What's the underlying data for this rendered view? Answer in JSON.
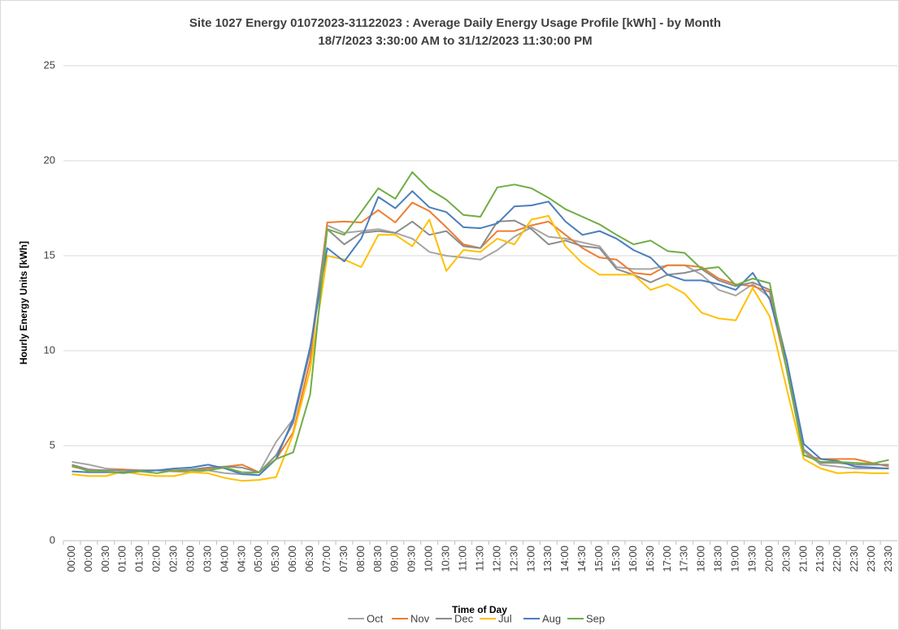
{
  "chart_data": {
    "type": "line",
    "title": "Site 1027 Energy 01072023-31122023 : Average Daily Energy Usage Profile [kWh] - by Month",
    "subtitle": "18/7/2023 3:30:00 AM to 31/12/2023 11:30:00 PM",
    "y_label": "Hourly Energy Units [kWh]",
    "x_label": "Time of Day",
    "categories": [
      "00:00",
      "00:00",
      "00:30",
      "01:00",
      "01:30",
      "02:00",
      "02:30",
      "03:00",
      "03:30",
      "04:00",
      "04:30",
      "05:00",
      "05:30",
      "06:00",
      "06:30",
      "07:00",
      "07:30",
      "08:00",
      "08:30",
      "09:00",
      "09:30",
      "10:00",
      "10:30",
      "11:00",
      "11:30",
      "12:00",
      "12:30",
      "13:00",
      "13:30",
      "14:00",
      "14:30",
      "15:00",
      "15:30",
      "16:00",
      "16:30",
      "17:00",
      "17:30",
      "18:00",
      "18:30",
      "19:00",
      "19:30",
      "20:00",
      "20:30",
      "21:00",
      "21:30",
      "22:00",
      "22:30",
      "23:00",
      "23:30"
    ],
    "series": [
      {
        "name": "Oct",
        "color": "#a5a5a5",
        "values": [
          4.15,
          4.0,
          3.8,
          3.75,
          3.7,
          3.7,
          3.65,
          3.6,
          3.7,
          3.55,
          3.5,
          3.6,
          5.2,
          6.4,
          10.0,
          16.6,
          16.2,
          16.3,
          16.4,
          16.2,
          15.9,
          15.2,
          15.0,
          14.9,
          14.8,
          15.3,
          16.0,
          16.5,
          16.0,
          15.9,
          15.7,
          15.5,
          14.4,
          14.3,
          14.3,
          14.5,
          14.5,
          14.0,
          13.2,
          12.9,
          13.5,
          12.8,
          9.0,
          4.7,
          4.0,
          3.9,
          3.8,
          3.8,
          3.8
        ]
      },
      {
        "name": "Nov",
        "color": "#ed7d31",
        "values": [
          3.9,
          3.7,
          3.7,
          3.75,
          3.7,
          3.7,
          3.65,
          3.7,
          3.8,
          3.9,
          4.0,
          3.6,
          4.3,
          5.7,
          9.5,
          16.75,
          16.8,
          16.75,
          17.4,
          16.75,
          17.8,
          17.35,
          16.5,
          15.6,
          15.4,
          16.3,
          16.3,
          16.6,
          16.8,
          16.1,
          15.4,
          14.9,
          14.8,
          14.1,
          14.0,
          14.5,
          14.5,
          14.4,
          13.8,
          13.5,
          13.4,
          13.1,
          9.0,
          4.5,
          4.3,
          4.3,
          4.3,
          4.1,
          3.9
        ]
      },
      {
        "name": "Dec",
        "color": "#8c8c8c",
        "values": [
          4.0,
          3.75,
          3.7,
          3.7,
          3.7,
          3.7,
          3.7,
          3.75,
          3.85,
          3.9,
          3.85,
          3.6,
          4.5,
          6.2,
          10.0,
          16.4,
          15.6,
          16.2,
          16.3,
          16.2,
          16.8,
          16.1,
          16.3,
          15.5,
          15.4,
          16.8,
          16.85,
          16.4,
          15.6,
          15.8,
          15.5,
          15.4,
          14.3,
          14.0,
          13.6,
          14.0,
          14.1,
          14.3,
          13.7,
          13.4,
          13.6,
          13.2,
          9.5,
          4.8,
          4.1,
          4.1,
          4.0,
          4.0,
          4.0
        ]
      },
      {
        "name": "Jul",
        "color": "#ffc000",
        "values": [
          3.5,
          3.4,
          3.4,
          3.65,
          3.5,
          3.4,
          3.4,
          3.6,
          3.55,
          3.3,
          3.15,
          3.2,
          3.35,
          5.6,
          9.0,
          15.0,
          14.8,
          14.4,
          16.1,
          16.1,
          15.5,
          16.9,
          14.2,
          15.3,
          15.2,
          15.9,
          15.6,
          16.9,
          17.1,
          15.5,
          14.6,
          14.0,
          14.0,
          14.0,
          13.2,
          13.5,
          13.0,
          12.0,
          11.7,
          11.6,
          13.3,
          11.8,
          8.0,
          4.3,
          3.8,
          3.55,
          3.6,
          3.55,
          3.55
        ]
      },
      {
        "name": "Aug",
        "color": "#4a7ebb",
        "values": [
          3.65,
          3.6,
          3.6,
          3.6,
          3.65,
          3.7,
          3.8,
          3.85,
          4.0,
          3.8,
          3.5,
          3.45,
          4.3,
          6.4,
          10.2,
          15.4,
          14.7,
          15.9,
          18.1,
          17.5,
          18.4,
          17.55,
          17.3,
          16.5,
          16.45,
          16.7,
          17.6,
          17.65,
          17.85,
          16.8,
          16.1,
          16.3,
          15.9,
          15.3,
          14.9,
          14.0,
          13.7,
          13.7,
          13.5,
          13.2,
          14.1,
          12.7,
          9.5,
          5.1,
          4.3,
          4.2,
          3.9,
          3.85,
          3.8
        ]
      },
      {
        "name": "Sep",
        "color": "#70ad47",
        "values": [
          3.95,
          3.65,
          3.65,
          3.55,
          3.65,
          3.55,
          3.7,
          3.7,
          3.7,
          3.85,
          3.6,
          3.6,
          4.3,
          4.65,
          7.7,
          16.4,
          16.1,
          17.3,
          18.55,
          18.0,
          19.4,
          18.5,
          17.95,
          17.15,
          17.05,
          18.6,
          18.75,
          18.55,
          18.05,
          17.45,
          17.05,
          16.65,
          16.1,
          15.6,
          15.8,
          15.25,
          15.15,
          14.3,
          14.4,
          13.45,
          13.8,
          13.55,
          9.0,
          4.5,
          4.15,
          4.15,
          4.1,
          4.05,
          4.25
        ]
      }
    ],
    "ylim": [
      0,
      25
    ],
    "yticks": [
      0,
      5,
      10,
      15,
      20,
      25
    ],
    "grid": true,
    "legend": "bottom"
  }
}
